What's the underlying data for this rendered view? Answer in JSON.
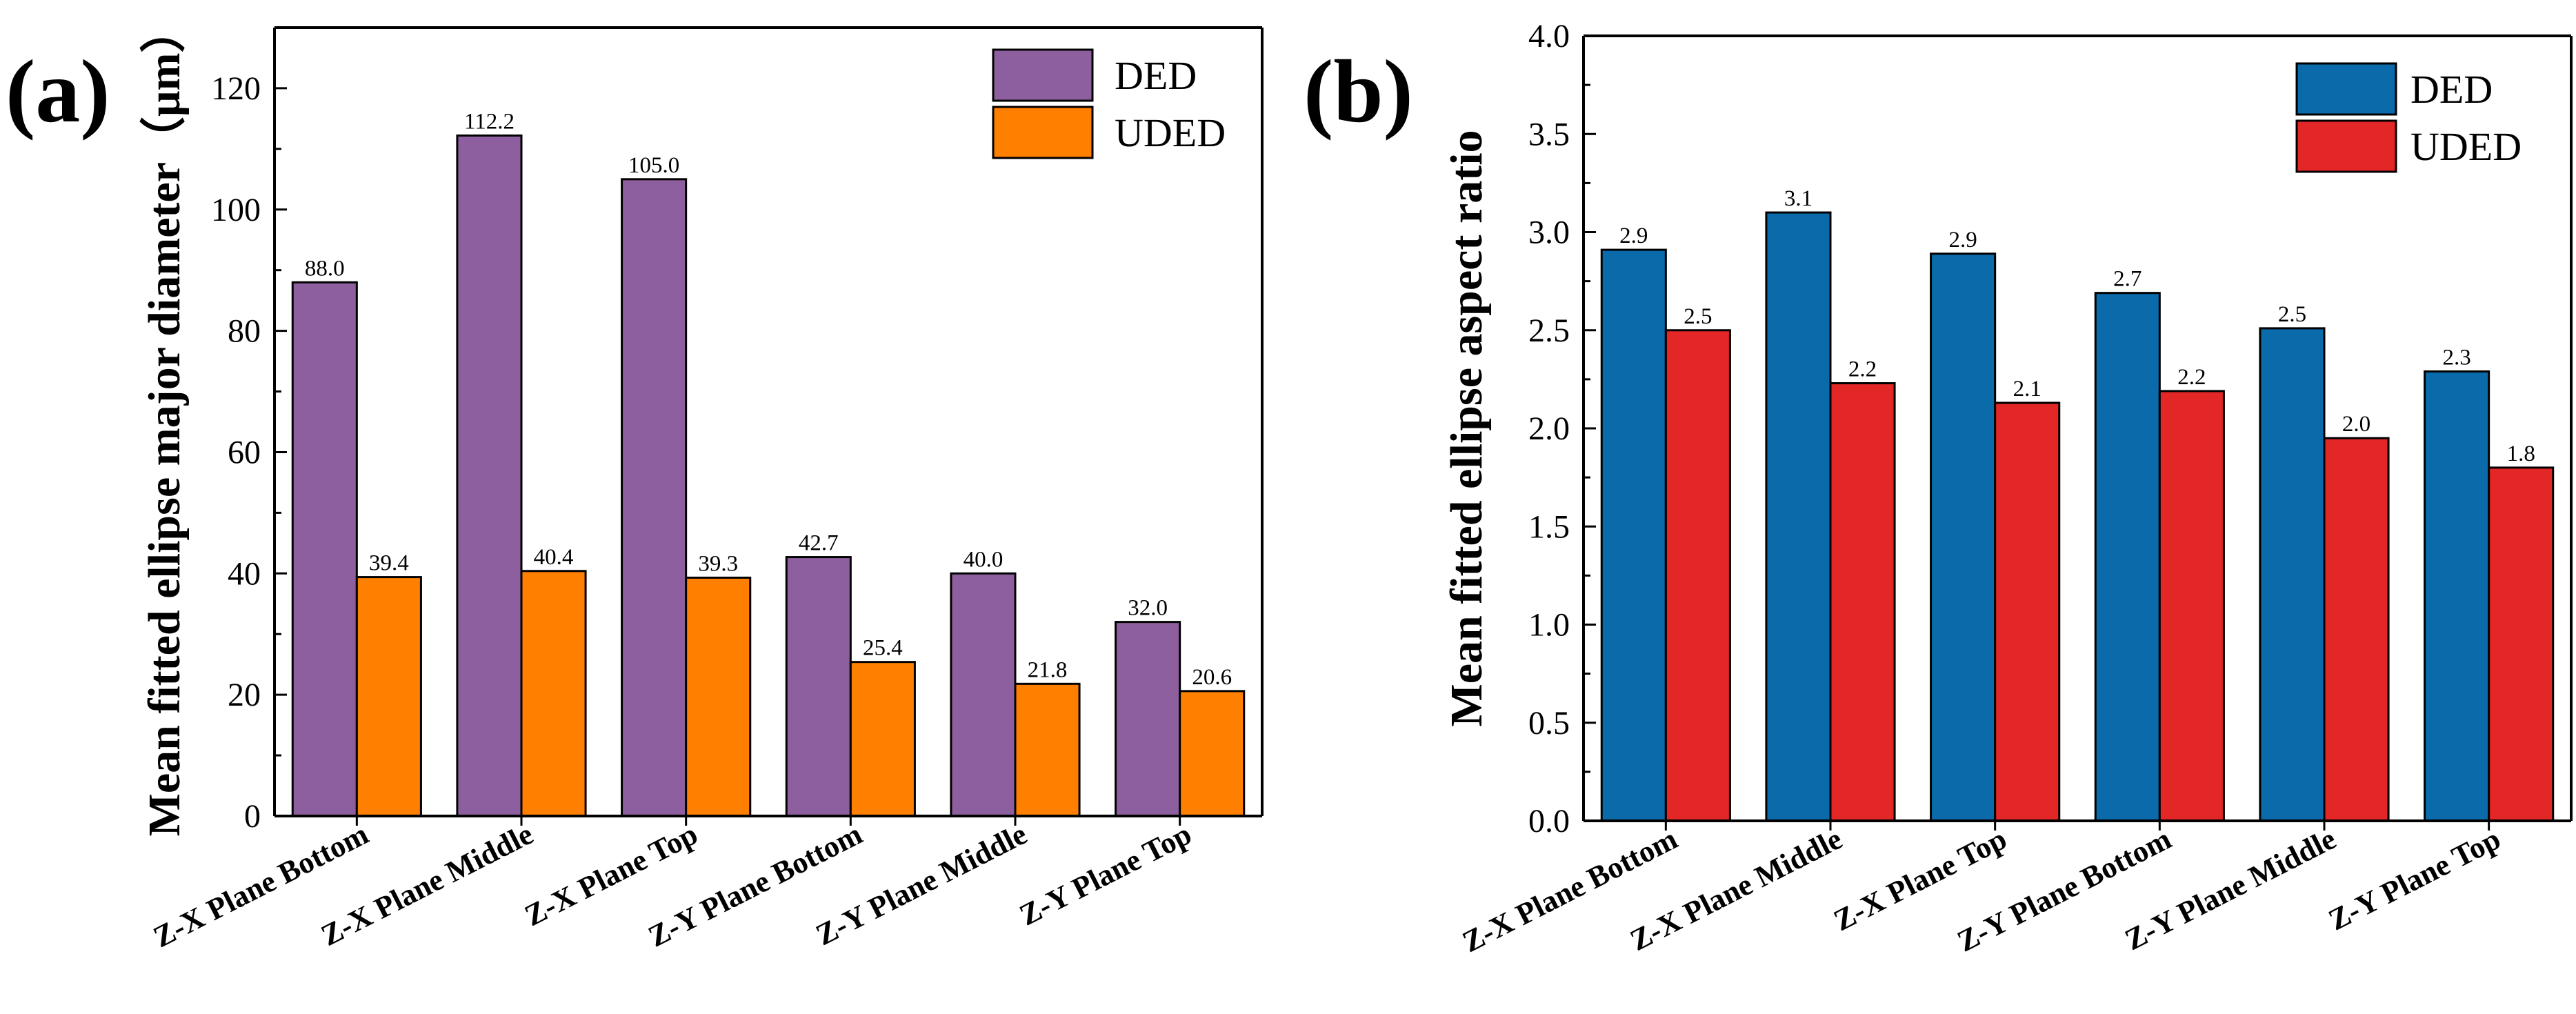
{
  "chart_data": [
    {
      "type": "bar",
      "panel_label": "(a)",
      "title": "",
      "xlabel": "",
      "ylabel": "Mean fitted ellipse major diameter（μm）",
      "ylim": [
        0,
        130
      ],
      "yticks": [
        0,
        20,
        40,
        60,
        80,
        100,
        120
      ],
      "tick_decimals": 0,
      "label_decimals": 1,
      "grid": false,
      "legend_position": "top-right",
      "categories": [
        "Z-X Plane Bottom",
        "Z-X Plane Middle",
        "Z-X Plane Top",
        "Z-Y Plane Bottom",
        "Z-Y Plane Middle",
        "Z-Y Plane Top"
      ],
      "series": [
        {
          "name": "DED",
          "color": "#8E5F9E",
          "values": [
            88.0,
            112.2,
            105.0,
            42.7,
            40.0,
            32.0
          ]
        },
        {
          "name": "UDED",
          "color": "#FF7F00",
          "values": [
            39.4,
            40.4,
            39.3,
            25.4,
            21.8,
            20.6
          ]
        }
      ]
    },
    {
      "type": "bar",
      "panel_label": "(b)",
      "title": "",
      "xlabel": "",
      "ylabel": "Mean fitted ellipse aspect ratio",
      "ylim": [
        0,
        4.0
      ],
      "yticks": [
        0.0,
        0.5,
        1.0,
        1.5,
        2.0,
        2.5,
        3.0,
        3.5,
        4.0
      ],
      "tick_decimals": 1,
      "label_decimals": 1,
      "grid": false,
      "legend_position": "top-right",
      "categories": [
        "Z-X Plane Bottom",
        "Z-X Plane Middle",
        "Z-X Plane Top",
        "Z-Y Plane Bottom",
        "Z-Y Plane Middle",
        "Z-Y Plane Top"
      ],
      "series": [
        {
          "name": "DED",
          "color": "#0A6AAA",
          "values": [
            2.91,
            3.1,
            2.89,
            2.69,
            2.51,
            2.29
          ],
          "labels": [
            "2.9",
            "3.1",
            "2.9",
            "2.7",
            "2.5",
            "2.3"
          ]
        },
        {
          "name": "UDED",
          "color": "#E32626",
          "values": [
            2.5,
            2.23,
            2.13,
            2.19,
            1.95,
            1.8
          ],
          "labels": [
            "2.5",
            "2.2",
            "2.1",
            "2.2",
            "2.0",
            "1.8"
          ]
        }
      ]
    }
  ]
}
